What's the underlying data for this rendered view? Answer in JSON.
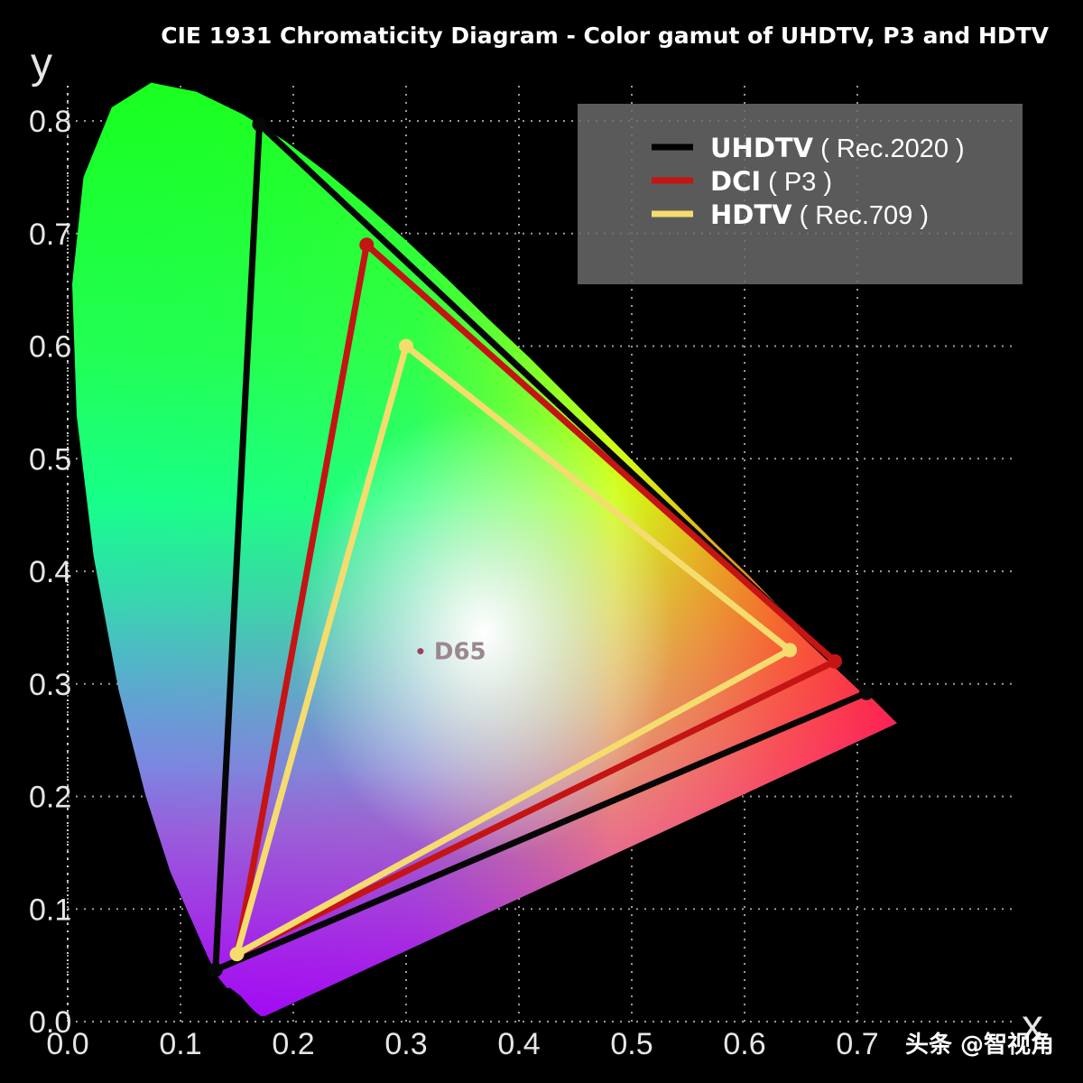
{
  "chart_data": {
    "type": "scatter",
    "title": "CIE 1931 Chromaticity Diagram - Color gamut of UHDTV, P3 and HDTV",
    "xlabel": "x",
    "ylabel": "y",
    "xlim": [
      0.0,
      0.8
    ],
    "ylim": [
      0.0,
      0.85
    ],
    "x_ticks": [
      "0.0",
      "0.1",
      "0.2",
      "0.3",
      "0.4",
      "0.5",
      "0.6",
      "0.7"
    ],
    "y_ticks": [
      "0.0",
      "0.1",
      "0.2",
      "0.3",
      "0.4",
      "0.5",
      "0.6",
      "0.7",
      "0.8"
    ],
    "grid": true,
    "legend_position": "top-right",
    "spectral_locus": [
      [
        0.175,
        0.005
      ],
      [
        0.174,
        0.005
      ],
      [
        0.173,
        0.005
      ],
      [
        0.171,
        0.005
      ],
      [
        0.166,
        0.009
      ],
      [
        0.161,
        0.014
      ],
      [
        0.153,
        0.023
      ],
      [
        0.144,
        0.03
      ],
      [
        0.141,
        0.03
      ],
      [
        0.133,
        0.04
      ],
      [
        0.124,
        0.058
      ],
      [
        0.113,
        0.083
      ],
      [
        0.091,
        0.133
      ],
      [
        0.069,
        0.201
      ],
      [
        0.045,
        0.295
      ],
      [
        0.023,
        0.413
      ],
      [
        0.008,
        0.538
      ],
      [
        0.004,
        0.655
      ],
      [
        0.014,
        0.75
      ],
      [
        0.039,
        0.812
      ],
      [
        0.074,
        0.834
      ],
      [
        0.114,
        0.826
      ],
      [
        0.155,
        0.806
      ],
      [
        0.193,
        0.782
      ],
      [
        0.23,
        0.754
      ],
      [
        0.266,
        0.724
      ],
      [
        0.302,
        0.692
      ],
      [
        0.337,
        0.659
      ],
      [
        0.373,
        0.624
      ],
      [
        0.409,
        0.59
      ],
      [
        0.445,
        0.554
      ],
      [
        0.479,
        0.52
      ],
      [
        0.512,
        0.487
      ],
      [
        0.544,
        0.455
      ],
      [
        0.575,
        0.424
      ],
      [
        0.603,
        0.397
      ],
      [
        0.627,
        0.372
      ],
      [
        0.648,
        0.352
      ],
      [
        0.666,
        0.334
      ],
      [
        0.68,
        0.32
      ],
      [
        0.691,
        0.309
      ],
      [
        0.715,
        0.285
      ],
      [
        0.735,
        0.265
      ]
    ],
    "white_point": {
      "name": "D65",
      "x": 0.3127,
      "y": 0.329
    },
    "series": [
      {
        "name": "UHDTV",
        "detail": "( Rec.2020 )",
        "color": "#000000",
        "display_color": "#060606",
        "points": [
          [
            0.708,
            0.292
          ],
          [
            0.17,
            0.797
          ],
          [
            0.131,
            0.046
          ]
        ]
      },
      {
        "name": "DCI",
        "detail": "( P3 )",
        "color": "#c41414",
        "points": [
          [
            0.68,
            0.32
          ],
          [
            0.265,
            0.69
          ],
          [
            0.15,
            0.06
          ]
        ]
      },
      {
        "name": "HDTV",
        "detail": "( Rec.709 )",
        "color": "#f5dc6e",
        "points": [
          [
            0.64,
            0.33
          ],
          [
            0.3,
            0.6
          ],
          [
            0.15,
            0.06
          ]
        ]
      }
    ]
  },
  "watermark": "头条 @智视角"
}
